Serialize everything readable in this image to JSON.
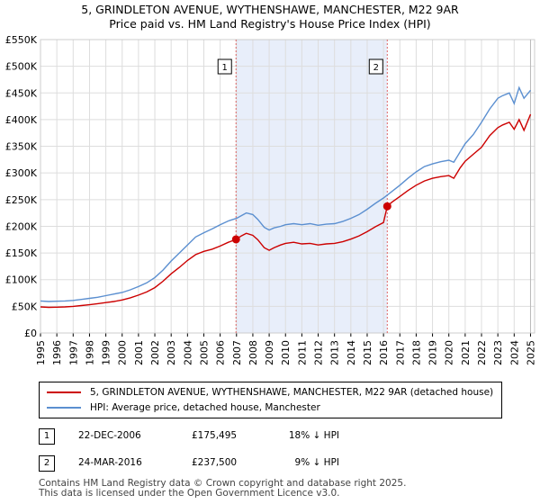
{
  "chart_data": {
    "type": "line",
    "title": "5, GRINDLETON AVENUE, WYTHENSHAWE, MANCHESTER, M22 9AR",
    "subtitle": "Price paid vs. HM Land Registry's House Price Index (HPI)",
    "xlabel": "",
    "ylabel": "",
    "xlim": [
      1995,
      2025.25
    ],
    "ylim": [
      0,
      550000
    ],
    "y_ticks": [
      {
        "value": 0,
        "label": "£0"
      },
      {
        "value": 50000,
        "label": "£50K"
      },
      {
        "value": 100000,
        "label": "£100K"
      },
      {
        "value": 150000,
        "label": "£150K"
      },
      {
        "value": 200000,
        "label": "£200K"
      },
      {
        "value": 250000,
        "label": "£250K"
      },
      {
        "value": 300000,
        "label": "£300K"
      },
      {
        "value": 350000,
        "label": "£350K"
      },
      {
        "value": 400000,
        "label": "£400K"
      },
      {
        "value": 450000,
        "label": "£450K"
      },
      {
        "value": 500000,
        "label": "£500K"
      },
      {
        "value": 550000,
        "label": "£550K"
      }
    ],
    "x_ticks": [
      "1995",
      "1996",
      "1997",
      "1998",
      "1999",
      "2000",
      "2001",
      "2002",
      "2003",
      "2004",
      "2005",
      "2006",
      "2007",
      "2008",
      "2009",
      "2010",
      "2011",
      "2012",
      "2013",
      "2014",
      "2015",
      "2016",
      "2017",
      "2018",
      "2019",
      "2020",
      "2021",
      "2022",
      "2023",
      "2024",
      "2025"
    ],
    "grid": true,
    "series": [
      {
        "name": "5, GRINDLETON AVENUE, WYTHENSHAWE, MANCHESTER, M22 9AR (detached house)",
        "color": "#cc0000",
        "x": [
          1995,
          1995.5,
          1996,
          1996.5,
          1997,
          1997.5,
          1998,
          1998.5,
          1999,
          1999.5,
          2000,
          2000.5,
          2001,
          2001.5,
          2002,
          2002.5,
          2003,
          2003.5,
          2004,
          2004.5,
          2005,
          2005.5,
          2006,
          2006.5,
          2006.97,
          2007.3,
          2007.6,
          2008,
          2008.3,
          2008.7,
          2009,
          2009.3,
          2009.7,
          2010,
          2010.5,
          2011,
          2011.5,
          2012,
          2012.5,
          2013,
          2013.5,
          2014,
          2014.5,
          2015,
          2015.5,
          2016,
          2016.23,
          2016.5,
          2017,
          2017.5,
          2018,
          2018.5,
          2019,
          2019.5,
          2020,
          2020.3,
          2020.7,
          2021,
          2021.5,
          2022,
          2022.5,
          2023,
          2023.3,
          2023.7,
          2024,
          2024.3,
          2024.6,
          2025
        ],
        "values": [
          49000,
          48000,
          48500,
          49000,
          50000,
          51500,
          53000,
          55000,
          57000,
          59000,
          62000,
          66000,
          71000,
          77000,
          85000,
          97000,
          111000,
          123000,
          136000,
          147000,
          153000,
          157000,
          163000,
          170000,
          175495,
          182000,
          187000,
          183000,
          175000,
          160000,
          155000,
          160000,
          165000,
          168000,
          170000,
          167000,
          168000,
          165000,
          167000,
          168000,
          171000,
          176000,
          182000,
          190000,
          199000,
          207000,
          237500,
          245000,
          256000,
          267000,
          277000,
          285000,
          290000,
          293000,
          295000,
          290000,
          310000,
          322000,
          335000,
          348000,
          370000,
          385000,
          390000,
          395000,
          382000,
          400000,
          380000,
          410000
        ]
      },
      {
        "name": "HPI: Average price, detached house, Manchester",
        "color": "#5b8fd0",
        "x": [
          1995,
          1995.5,
          1996,
          1996.5,
          1997,
          1997.5,
          1998,
          1998.5,
          1999,
          1999.5,
          2000,
          2000.5,
          2001,
          2001.5,
          2002,
          2002.5,
          2003,
          2003.5,
          2004,
          2004.5,
          2005,
          2005.5,
          2006,
          2006.5,
          2007,
          2007.3,
          2007.6,
          2008,
          2008.3,
          2008.7,
          2009,
          2009.3,
          2009.7,
          2010,
          2010.5,
          2011,
          2011.5,
          2012,
          2012.5,
          2013,
          2013.5,
          2014,
          2014.5,
          2015,
          2015.5,
          2016,
          2016.5,
          2017,
          2017.5,
          2018,
          2018.5,
          2019,
          2019.5,
          2020,
          2020.3,
          2020.7,
          2021,
          2021.5,
          2022,
          2022.5,
          2023,
          2023.3,
          2023.7,
          2024,
          2024.3,
          2024.6,
          2025
        ],
        "values": [
          60000,
          59000,
          59500,
          60000,
          61000,
          63000,
          65000,
          67000,
          70000,
          73000,
          76000,
          81000,
          87000,
          94000,
          104000,
          118000,
          135000,
          150000,
          165000,
          180000,
          188000,
          195000,
          203000,
          210000,
          215000,
          220000,
          225000,
          222000,
          213000,
          198000,
          193000,
          197000,
          200000,
          203000,
          205000,
          203000,
          205000,
          202000,
          204000,
          205000,
          209000,
          215000,
          222000,
          232000,
          243000,
          253000,
          265000,
          277000,
          290000,
          302000,
          312000,
          317000,
          321000,
          324000,
          320000,
          340000,
          355000,
          372000,
          395000,
          420000,
          440000,
          445000,
          450000,
          430000,
          460000,
          440000,
          455000
        ]
      }
    ],
    "annotations": [
      {
        "label": "1",
        "x": 2006.97,
        "y": 175495
      },
      {
        "label": "2",
        "x": 2016.23,
        "y": 237500
      }
    ],
    "shaded_period": [
      2006.97,
      2016.23
    ]
  },
  "legend": {
    "entries": [
      {
        "label": "5, GRINDLETON AVENUE, WYTHENSHAWE, MANCHESTER, M22 9AR (detached house)",
        "color": "#cc0000"
      },
      {
        "label": "HPI: Average price, detached house, Manchester",
        "color": "#5b8fd0"
      }
    ]
  },
  "transactions": [
    {
      "num": "1",
      "date": "22-DEC-2006",
      "price": "£175,495",
      "hpi": "18% ↓ HPI"
    },
    {
      "num": "2",
      "date": "24-MAR-2016",
      "price": "£237,500",
      "hpi": "9% ↓ HPI"
    }
  ],
  "footer": {
    "line1": "Contains HM Land Registry data © Crown copyright and database right 2025.",
    "line2": "This data is licensed under the Open Government Licence v3.0."
  }
}
